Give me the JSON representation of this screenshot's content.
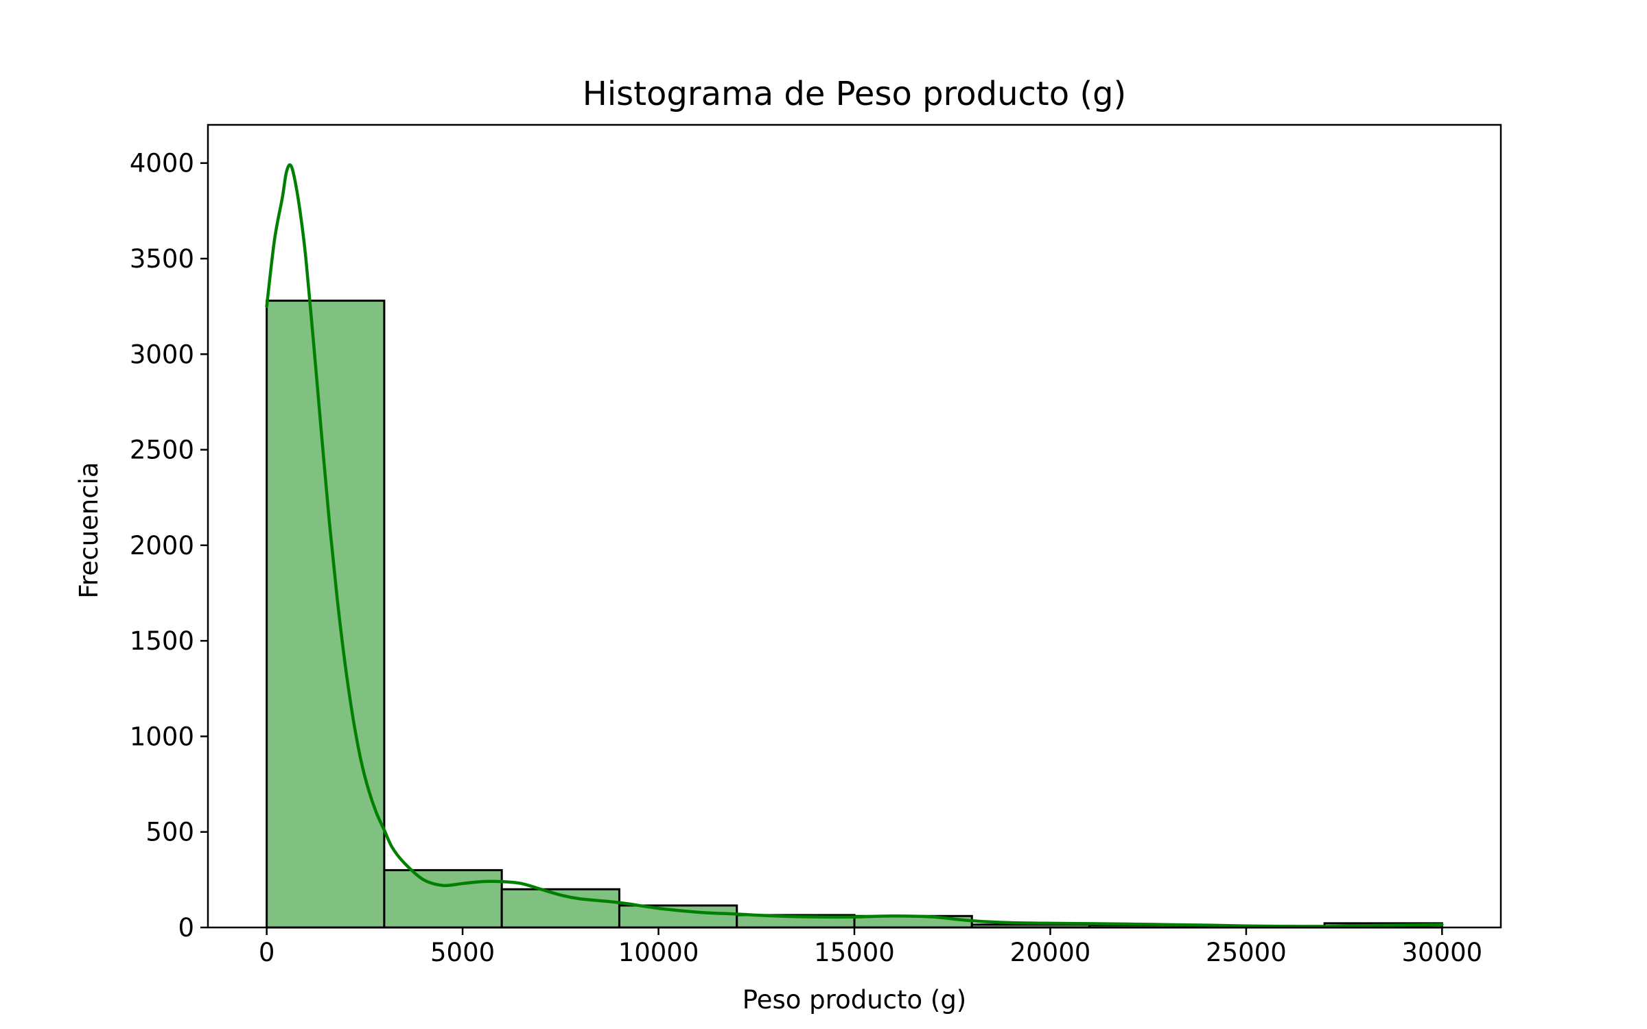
{
  "chart_data": {
    "type": "bar",
    "subtype": "histogram",
    "title": "Histograma de Peso producto (g)",
    "xlabel": "Peso producto (g)",
    "ylabel": "Frecuencia",
    "xlim": [
      -1500,
      31500
    ],
    "ylim": [
      0,
      4200
    ],
    "xticks": [
      0,
      5000,
      10000,
      15000,
      20000,
      25000,
      30000
    ],
    "yticks": [
      0,
      500,
      1000,
      1500,
      2000,
      2500,
      3000,
      3500,
      4000
    ],
    "bin_edges": [
      0,
      3000,
      6000,
      9000,
      12000,
      15000,
      18000,
      21000,
      24000,
      27000,
      30000
    ],
    "values": [
      3280,
      300,
      200,
      115,
      65,
      60,
      15,
      12,
      8,
      22
    ],
    "kde": {
      "x": [
        0,
        200,
        400,
        500,
        600,
        700,
        850,
        1000,
        1200,
        1400,
        1600,
        1800,
        2000,
        2200,
        2400,
        2600,
        2800,
        3000,
        3200,
        3500,
        4000,
        4500,
        5000,
        5500,
        6000,
        6500,
        7000,
        7500,
        8000,
        9000,
        10000,
        11000,
        12000,
        13000,
        14000,
        15000,
        16000,
        17000,
        18000,
        19000,
        20000,
        21000,
        22000,
        23000,
        24000,
        25000,
        26000,
        27000,
        28000,
        29000,
        30000
      ],
      "y": [
        3250,
        3600,
        3820,
        3950,
        3990,
        3930,
        3750,
        3500,
        3050,
        2580,
        2120,
        1720,
        1380,
        1100,
        880,
        720,
        600,
        510,
        420,
        340,
        250,
        220,
        230,
        240,
        240,
        230,
        200,
        170,
        150,
        130,
        100,
        80,
        70,
        60,
        55,
        55,
        60,
        55,
        35,
        25,
        22,
        20,
        18,
        15,
        12,
        8,
        6,
        5,
        10,
        12,
        15
      ]
    },
    "colors": {
      "bar_fill": "#80c080",
      "bar_edge": "#000000",
      "kde_line": "#008000"
    },
    "grid": false,
    "legend": "none"
  }
}
